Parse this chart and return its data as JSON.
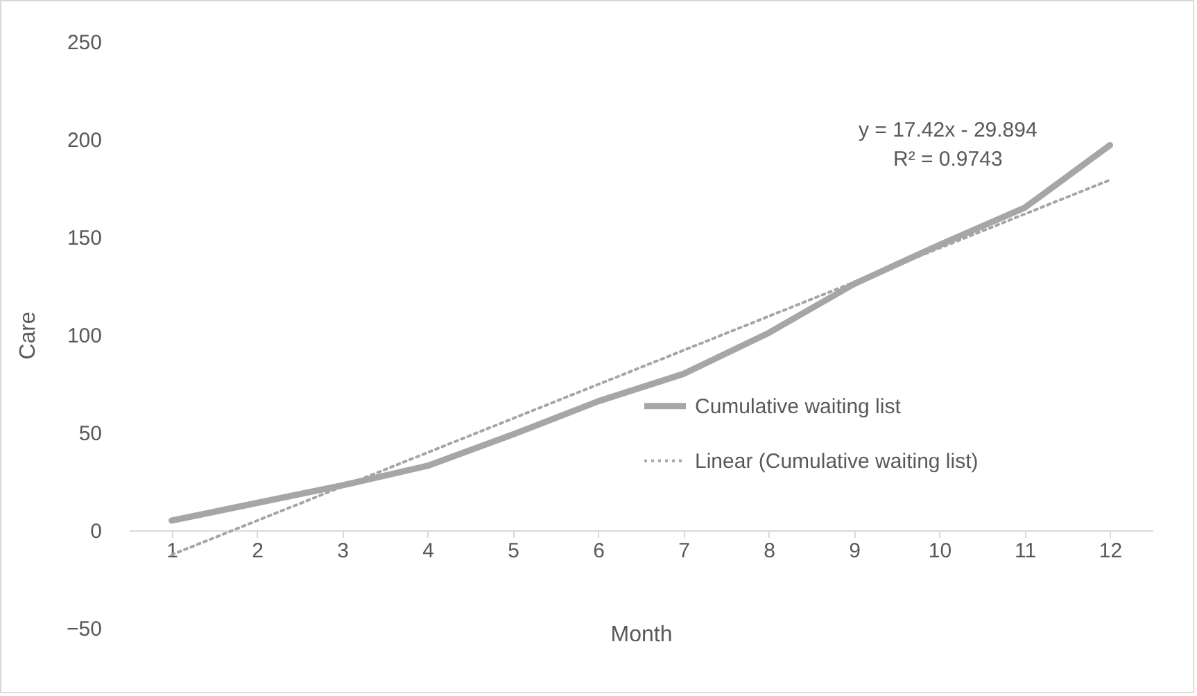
{
  "chart_data": {
    "type": "line",
    "xlabel": "Month",
    "ylabel": "Care",
    "x": [
      1,
      2,
      3,
      4,
      5,
      6,
      7,
      8,
      9,
      10,
      11,
      12
    ],
    "xlim": [
      0.5,
      12.5
    ],
    "xticks": [
      1,
      2,
      3,
      4,
      5,
      6,
      7,
      8,
      9,
      10,
      11,
      12
    ],
    "ylim": [
      -50,
      250
    ],
    "yticks": [
      -50,
      0,
      50,
      100,
      150,
      200,
      250
    ],
    "series": [
      {
        "name": "Cumulative waiting list",
        "color": "#a6a6a6",
        "line_style": "solid",
        "values": [
          5,
          14,
          23,
          33,
          49,
          66,
          80,
          101,
          126,
          146,
          165,
          197
        ]
      },
      {
        "name": "Linear (Cumulative waiting list)",
        "type": "line",
        "color": "#a6a6a6",
        "line_style": "dotted",
        "x": [
          1,
          12
        ],
        "values": [
          -12.5,
          179.2
        ]
      }
    ],
    "annotations": [
      "y = 17.42x - 29.894",
      "R² = 0.9743"
    ],
    "legend": "right",
    "grid": false
  }
}
